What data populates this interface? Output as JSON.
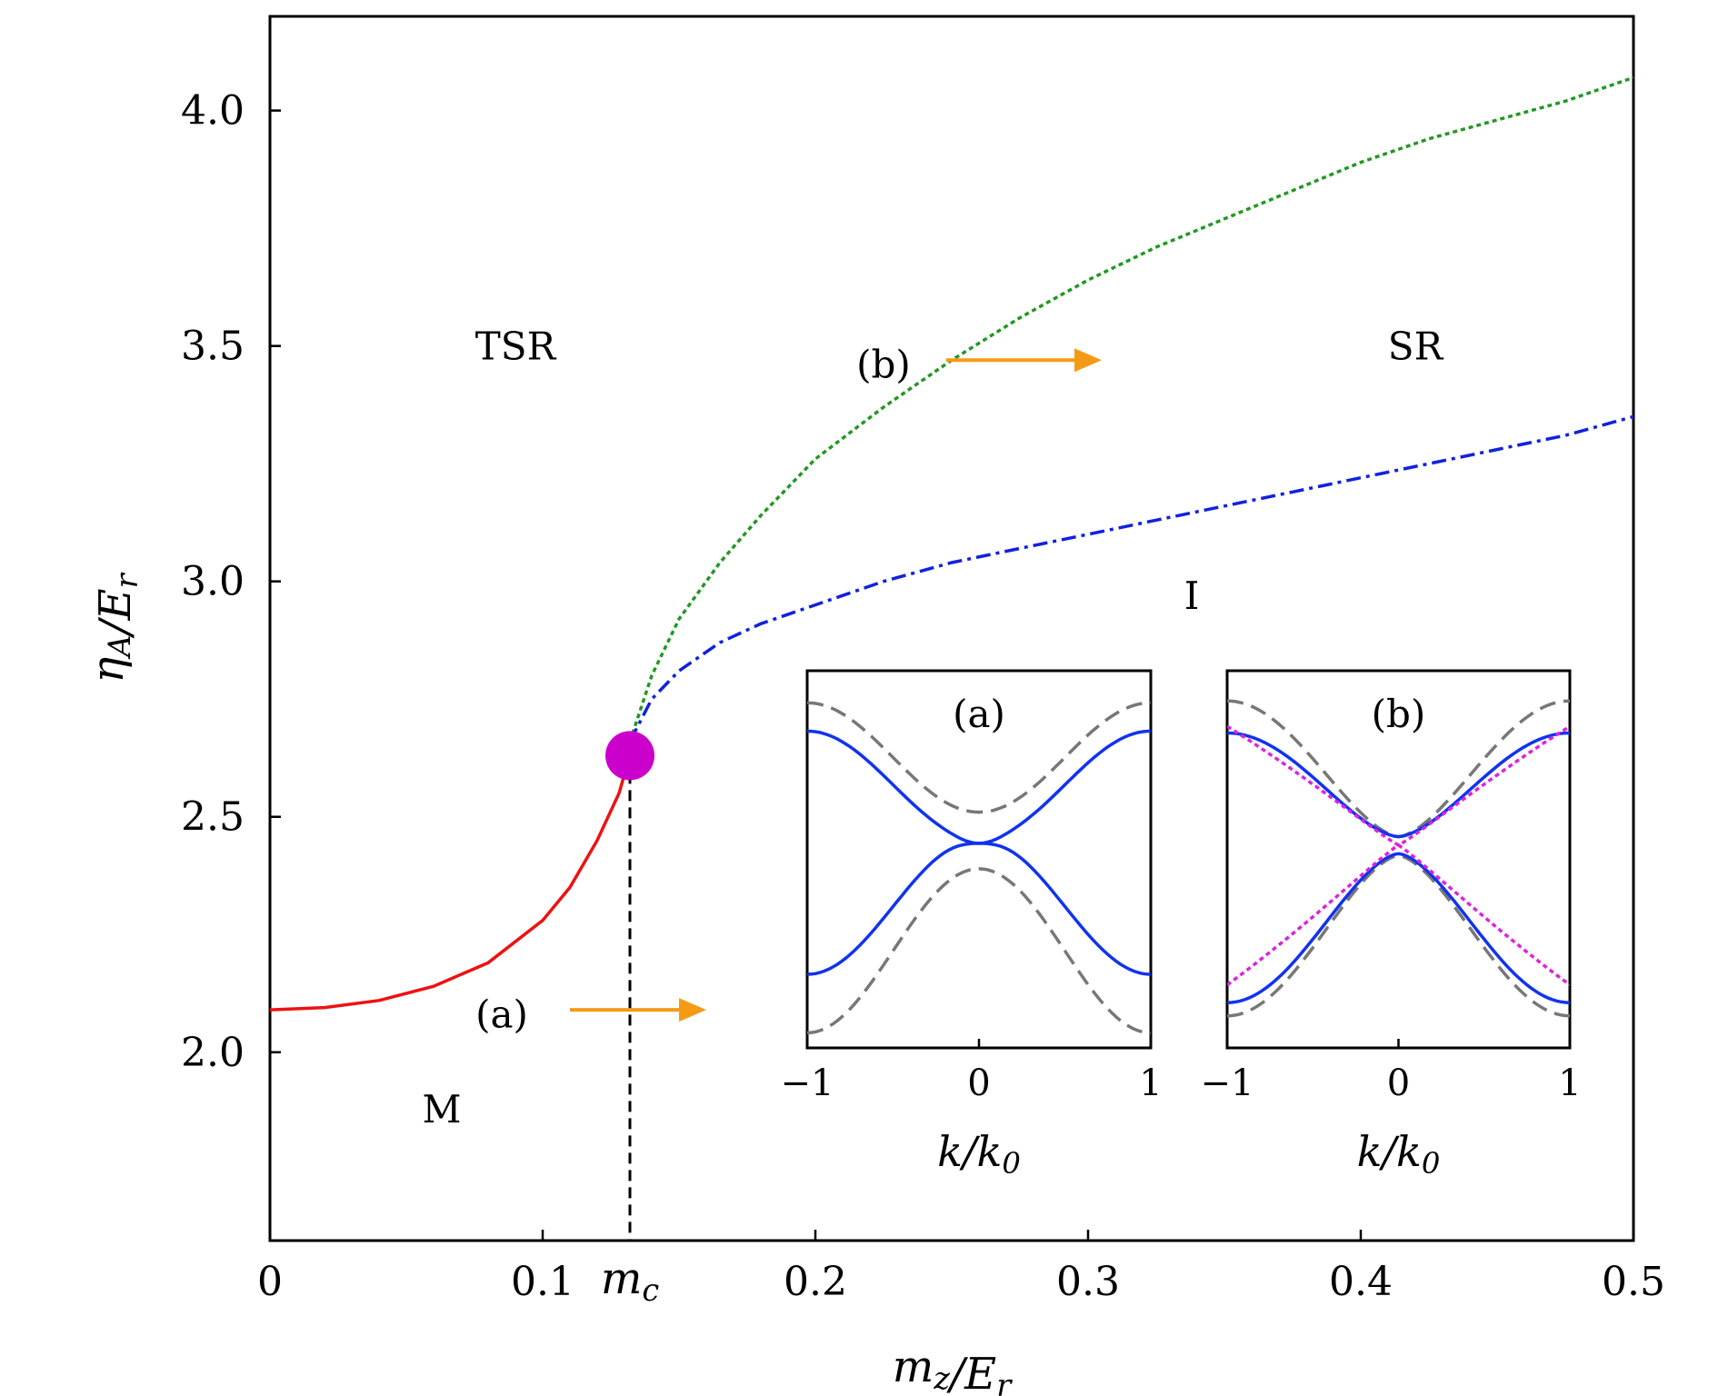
{
  "chart_data": {
    "type": "line",
    "xlabel": "m_z/E_r",
    "ylabel": "η_A/E_r",
    "xlim": [
      0,
      0.5
    ],
    "ylim": [
      1.6,
      4.2
    ],
    "xticks": [
      "0",
      "0.1",
      "0.2",
      "0.3",
      "0.4",
      "0.5"
    ],
    "xtick_values": [
      0,
      0.1,
      0.2,
      0.3,
      0.4,
      0.5
    ],
    "yticks": [
      "2.0",
      "2.5",
      "3.0",
      "3.5",
      "4.0"
    ],
    "ytick_values": [
      2.0,
      2.5,
      3.0,
      3.5,
      4.0
    ],
    "critical_label": "m_c",
    "critical_point": {
      "x": 0.132,
      "y": 2.63,
      "color": "#cc00cc"
    },
    "series": [
      {
        "style": "solid",
        "color": "#ee1111",
        "x": [
          0,
          0.02,
          0.04,
          0.06,
          0.08,
          0.1,
          0.11,
          0.12,
          0.128,
          0.132
        ],
        "y": [
          2.09,
          2.095,
          2.11,
          2.14,
          2.19,
          2.28,
          2.35,
          2.45,
          2.55,
          2.63
        ]
      },
      {
        "style": "dotted",
        "color": "#229922",
        "x": [
          0.132,
          0.14,
          0.15,
          0.165,
          0.18,
          0.2,
          0.225,
          0.25,
          0.275,
          0.3,
          0.325,
          0.35,
          0.375,
          0.4,
          0.425,
          0.45,
          0.475,
          0.5
        ],
        "y": [
          2.66,
          2.8,
          2.92,
          3.04,
          3.14,
          3.26,
          3.37,
          3.47,
          3.56,
          3.64,
          3.71,
          3.77,
          3.83,
          3.89,
          3.94,
          3.98,
          4.02,
          4.07
        ]
      },
      {
        "style": "dashdot",
        "color": "#1122dd",
        "x": [
          0.132,
          0.14,
          0.15,
          0.165,
          0.18,
          0.2,
          0.225,
          0.25,
          0.275,
          0.3,
          0.325,
          0.35,
          0.375,
          0.4,
          0.425,
          0.45,
          0.475,
          0.5
        ],
        "y": [
          2.66,
          2.75,
          2.81,
          2.87,
          2.91,
          2.95,
          3.0,
          3.04,
          3.07,
          3.1,
          3.13,
          3.16,
          3.19,
          3.22,
          3.25,
          3.28,
          3.31,
          3.35
        ]
      }
    ],
    "region_labels": [
      {
        "text": "TSR",
        "x": 0.09,
        "y": 3.5
      },
      {
        "text": "SR",
        "x": 0.42,
        "y": 3.5
      },
      {
        "text": "I",
        "x": 0.338,
        "y": 2.97
      },
      {
        "text": "M",
        "x": 0.063,
        "y": 1.88
      }
    ],
    "arrows": [
      {
        "text": "(a)",
        "color": "#f59a14",
        "x_text": 0.085,
        "y_text": 2.08,
        "x0": 0.11,
        "x1": 0.16,
        "y": 2.09
      },
      {
        "text": "(b)",
        "color": "#f59a14",
        "x_text": 0.225,
        "y_text": 3.46,
        "x0": 0.248,
        "x1": 0.305,
        "y": 3.47
      }
    ],
    "insets": [
      {
        "title": "(a)",
        "xlabel": "k/k_0",
        "xticks": [
          "−1",
          "0",
          "1"
        ],
        "xtick_values": [
          -1,
          0,
          1
        ],
        "xlim": [
          -1,
          1
        ],
        "ylim": [
          -1,
          1
        ],
        "curves": [
          {
            "color": "#1133ee",
            "style": "solid",
            "kind": "double-well-upper"
          },
          {
            "color": "#1133ee",
            "style": "solid",
            "kind": "double-well-lower"
          },
          {
            "color": "#777777",
            "style": "dashed",
            "kind": "gapped-upper"
          },
          {
            "color": "#777777",
            "style": "dashed",
            "kind": "gapped-lower"
          }
        ]
      },
      {
        "title": "(b)",
        "xlabel": "k/k_0",
        "xticks": [
          "−1",
          "0",
          "1"
        ],
        "xtick_values": [
          -1,
          0,
          1
        ],
        "xlim": [
          -1,
          1
        ],
        "ylim": [
          -1,
          1
        ],
        "curves": [
          {
            "color": "#777777",
            "style": "dashed",
            "kind": "wide-upper"
          },
          {
            "color": "#777777",
            "style": "dashed",
            "kind": "wide-lower"
          },
          {
            "color": "#1133ee",
            "style": "solid",
            "kind": "mid-upper"
          },
          {
            "color": "#1133ee",
            "style": "solid",
            "kind": "mid-lower"
          },
          {
            "color": "#dd22dd",
            "style": "dotted",
            "kind": "cross-upper"
          },
          {
            "color": "#dd22dd",
            "style": "dotted",
            "kind": "cross-lower"
          }
        ]
      }
    ]
  }
}
